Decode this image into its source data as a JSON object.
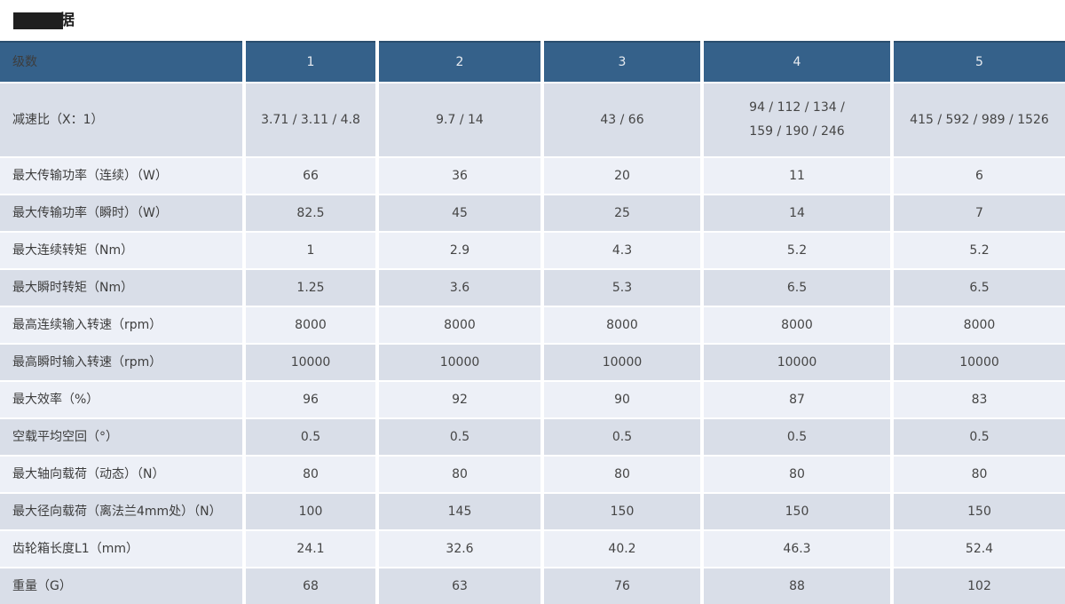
{
  "title": {
    "visible_suffix": "据",
    "note": "title mostly covered by black redaction box; last character 据 partially visible"
  },
  "colors": {
    "header_bg": "#35618a",
    "header_border": "#2a4e6e",
    "header_text": "#e8ecf1",
    "row_dark": "#d9dee8",
    "row_light": "#edf0f7",
    "redaction": "#1f1f1f"
  },
  "table": {
    "header": {
      "label": "级数",
      "columns": [
        "1",
        "2",
        "3",
        "4",
        "5"
      ]
    },
    "rows": [
      {
        "label": "减速比（X：1）",
        "values": [
          "3.71 / 3.11 / 4.8",
          "9.7 / 14",
          "43 / 66",
          "94 / 112 / 134 /\n159 / 190 / 246",
          "415 / 592 / 989 / 1526"
        ]
      },
      {
        "label": "最大传输功率（连续）（W）",
        "values": [
          "66",
          "36",
          "20",
          "11",
          "6"
        ]
      },
      {
        "label": "最大传输功率（瞬时）（W）",
        "values": [
          "82.5",
          "45",
          "25",
          "14",
          "7"
        ]
      },
      {
        "label": "最大连续转矩（Nm）",
        "values": [
          "1",
          "2.9",
          "4.3",
          "5.2",
          "5.2"
        ]
      },
      {
        "label": "最大瞬时转矩（Nm）",
        "values": [
          "1.25",
          "3.6",
          "5.3",
          "6.5",
          "6.5"
        ]
      },
      {
        "label": "最高连续输入转速（rpm）",
        "values": [
          "8000",
          "8000",
          "8000",
          "8000",
          "8000"
        ]
      },
      {
        "label": "最高瞬时输入转速（rpm）",
        "values": [
          "10000",
          "10000",
          "10000",
          "10000",
          "10000"
        ]
      },
      {
        "label": "最大效率（%）",
        "values": [
          "96",
          "92",
          "90",
          "87",
          "83"
        ]
      },
      {
        "label": "空载平均空回（°）",
        "values": [
          "0.5",
          "0.5",
          "0.5",
          "0.5",
          "0.5"
        ]
      },
      {
        "label": "最大轴向载荷（动态）（N）",
        "values": [
          "80",
          "80",
          "80",
          "80",
          "80"
        ]
      },
      {
        "label": "最大径向载荷（离法兰4mm处）（N）",
        "values": [
          "100",
          "145",
          "150",
          "150",
          "150"
        ]
      },
      {
        "label": "齿轮箱长度L1（mm）",
        "values": [
          "24.1",
          "32.6",
          "40.2",
          "46.3",
          "52.4"
        ]
      },
      {
        "label": "重量（G）",
        "values": [
          "68",
          "63",
          "76",
          "88",
          "102"
        ]
      }
    ]
  }
}
